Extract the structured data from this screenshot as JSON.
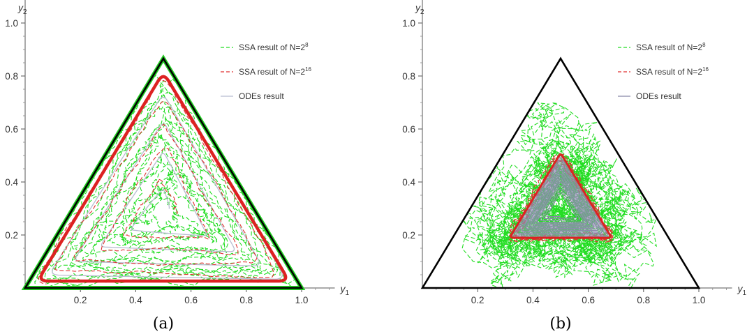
{
  "chart_data": [
    {
      "type": "line",
      "caption": "(a)",
      "xlabel": "y",
      "xlabel_sub": "1",
      "ylabel": "y",
      "ylabel_sub": "2",
      "xlim": [
        0,
        1.12
      ],
      "ylim": [
        0,
        1.15
      ],
      "xticks": [
        0.2,
        0.4,
        0.6,
        0.8,
        1.0
      ],
      "xtick_labels": [
        "0.2",
        "0.4",
        "0.6",
        "0.8",
        "1.0"
      ],
      "yticks": [
        0.2,
        0.4,
        0.6,
        0.8,
        1.0
      ],
      "ytick_labels": [
        "0.2",
        "0.4",
        "0.6",
        "0.8",
        "1.0"
      ],
      "triangle": [
        [
          0,
          0
        ],
        [
          1,
          0
        ],
        [
          0.5,
          0.866
        ]
      ],
      "legend_position": "top-right",
      "series": [
        {
          "name": "SSA result of N=2",
          "name_sup": "8",
          "color": "#22dd22",
          "style": "dashed",
          "trajectory": {
            "cx": 0.5,
            "cy": 0.2887,
            "s_start": 0.12,
            "s_end": 0.975,
            "turns": 9.2,
            "phase": 2.2,
            "amp": 0.025,
            "seed": 11
          }
        },
        {
          "name": "SSA result of N=2",
          "name_sup": "16",
          "color": "#e03030",
          "style": "dashed",
          "trajectory": {
            "cx": 0.5,
            "cy": 0.2887,
            "s_start": 0.14,
            "s_end": 0.935,
            "turns": 4.6,
            "phase": 2.6,
            "amp": 0.008,
            "seed": 5
          }
        },
        {
          "name": "ODEs result",
          "color": "#b8bcd0",
          "style": "solid",
          "trajectory": {
            "cx": 0.5,
            "cy": 0.2887,
            "s_start": 0.08,
            "s_end": 0.93,
            "turns": 4.1,
            "phase": 3.1,
            "amp": 0.0,
            "seed": 1
          }
        }
      ],
      "limit_cycle": {
        "color": "#dd2222",
        "s": 0.91,
        "cx": 0.5,
        "cy": 0.2887
      }
    },
    {
      "type": "line",
      "caption": "(b)",
      "xlabel": "y",
      "xlabel_sub": "1",
      "ylabel": "y",
      "ylabel_sub": "2",
      "xlim": [
        0,
        1.12
      ],
      "ylim": [
        0,
        1.15
      ],
      "xticks": [
        0.2,
        0.4,
        0.6,
        0.8,
        1.0
      ],
      "xtick_labels": [
        "0.2",
        "0.4",
        "0.6",
        "0.8",
        "1.0"
      ],
      "yticks": [
        0.2,
        0.4,
        0.6,
        0.8,
        1.0
      ],
      "ytick_labels": [
        "0.2",
        "0.4",
        "0.6",
        "0.8",
        "1.0"
      ],
      "triangle": [
        [
          0,
          0
        ],
        [
          1,
          0
        ],
        [
          0.5,
          0.866
        ]
      ],
      "legend_position": "top-right",
      "series": [
        {
          "name": "SSA result of N=2",
          "name_sup": "8",
          "color": "#22dd22",
          "style": "dashed",
          "trajectory": {
            "cx": 0.5,
            "cy": 0.3,
            "s_start": 0.66,
            "s_end": 0.18,
            "turns": 12,
            "phase": 0.4,
            "amp": 0.09,
            "seed": 23
          }
        },
        {
          "name": "SSA result of N=2",
          "name_sup": "16",
          "color": "#e03030",
          "style": "dashed",
          "trajectory": {
            "cx": 0.5,
            "cy": 0.3,
            "s_start": 0.38,
            "s_end": 0.36,
            "turns": 6,
            "phase": 0.0,
            "amp": 0.012,
            "seed": 9
          }
        },
        {
          "name": "ODEs result",
          "color": "#8888a8",
          "style": "solid",
          "trajectory": {
            "cx": 0.5,
            "cy": 0.3,
            "s_start": 0.36,
            "s_end": 0.1,
            "turns": 9,
            "phase": 1.0,
            "amp": 0.0,
            "seed": 2
          }
        }
      ],
      "limit_cycle": {
        "color": "#dd2222",
        "s": 0.37,
        "cx": 0.5,
        "cy": 0.3
      }
    }
  ]
}
